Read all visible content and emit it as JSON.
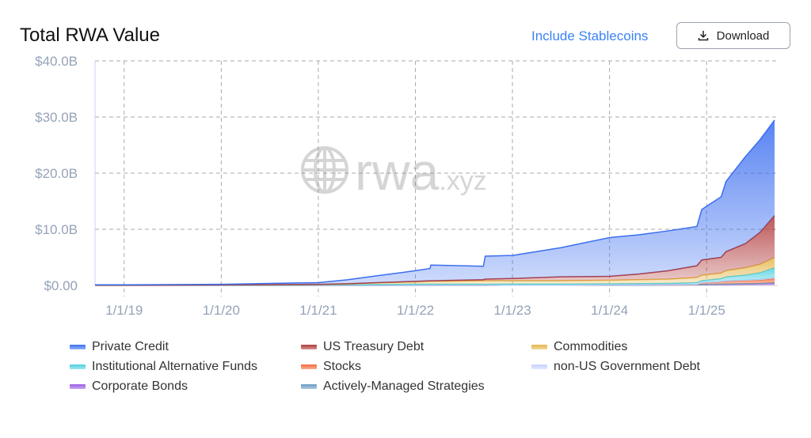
{
  "header": {
    "title": "Total RWA Value",
    "stablecoins_label": "Include Stablecoins",
    "download_label": "Download"
  },
  "watermark": "rwa.xyz",
  "chart_data": {
    "type": "area",
    "stacked": true,
    "title": "Total RWA Value",
    "ylim": [
      0,
      40
    ],
    "xlim": [
      2018.7,
      2025.7
    ],
    "y_ticks": [
      {
        "v": 0,
        "label": "$0.00"
      },
      {
        "v": 10,
        "label": "$10.0B"
      },
      {
        "v": 20,
        "label": "$20.0B"
      },
      {
        "v": 30,
        "label": "$30.0B"
      },
      {
        "v": 40,
        "label": "$40.0B"
      }
    ],
    "x_ticks": [
      {
        "v": 2019,
        "label": "1/1/19"
      },
      {
        "v": 2020,
        "label": "1/1/20"
      },
      {
        "v": 2021,
        "label": "1/1/21"
      },
      {
        "v": 2022,
        "label": "1/1/22"
      },
      {
        "v": 2023,
        "label": "1/1/23"
      },
      {
        "v": 2024,
        "label": "1/1/24"
      },
      {
        "v": 2025,
        "label": "1/1/25"
      }
    ],
    "grid": true,
    "legend_position": "bottom",
    "x": [
      2018.7,
      2019,
      2020,
      2021,
      2021.3,
      2021.6,
      2022,
      2022.15,
      2022.16,
      2022.7,
      2022.72,
      2023,
      2023.5,
      2024,
      2024.3,
      2024.6,
      2024.9,
      2024.95,
      2025.15,
      2025.2,
      2025.4,
      2025.55,
      2025.7
    ],
    "series": [
      {
        "name": "Corporate Bonds",
        "color": "#9b5de5",
        "values": [
          0,
          0,
          0,
          0,
          0,
          0,
          0.02,
          0.02,
          0.02,
          0.02,
          0.02,
          0.03,
          0.03,
          0.05,
          0.05,
          0.08,
          0.1,
          0.15,
          0.2,
          0.2,
          0.25,
          0.3,
          0.4
        ]
      },
      {
        "name": "Actively-Managed Strategies",
        "color": "#6b9ac4",
        "values": [
          0,
          0,
          0,
          0,
          0,
          0,
          0,
          0,
          0,
          0,
          0,
          0,
          0,
          0,
          0,
          0,
          0,
          0.03,
          0.03,
          0.04,
          0.05,
          0.05,
          0.05
        ]
      },
      {
        "name": "Stocks",
        "color": "#f26b3a",
        "values": [
          0,
          0,
          0,
          0,
          0,
          0,
          0,
          0,
          0,
          0,
          0,
          0,
          0,
          0.05,
          0.05,
          0.05,
          0.05,
          0.3,
          0.4,
          0.5,
          0.55,
          0.6,
          0.8
        ]
      },
      {
        "name": "non-US Government Debt",
        "color": "#c7d2fe",
        "values": [
          0,
          0,
          0,
          0,
          0,
          0,
          0,
          0,
          0,
          0,
          0,
          0,
          0,
          0.02,
          0.02,
          0.03,
          0.05,
          0.05,
          0.07,
          0.08,
          0.1,
          0.1,
          0.1
        ]
      },
      {
        "name": "Institutional Alternative Funds",
        "color": "#4dd0e1",
        "values": [
          0.02,
          0.02,
          0.05,
          0.08,
          0.1,
          0.15,
          0.2,
          0.2,
          0.2,
          0.2,
          0.2,
          0.2,
          0.2,
          0.15,
          0.2,
          0.2,
          0.3,
          0.3,
          0.5,
          0.7,
          0.9,
          1.2,
          1.8
        ]
      },
      {
        "name": "Commodities",
        "color": "#e5b64a",
        "values": [
          0.01,
          0.01,
          0.03,
          0.07,
          0.15,
          0.3,
          0.4,
          0.5,
          0.5,
          0.6,
          0.6,
          0.6,
          0.6,
          0.65,
          0.7,
          0.75,
          0.9,
          1.0,
          1.0,
          1.1,
          1.3,
          1.5,
          1.8
        ]
      },
      {
        "name": "US Treasury Debt",
        "color": "#b03a3a",
        "values": [
          0.02,
          0.02,
          0.02,
          0.05,
          0.05,
          0.05,
          0.1,
          0.1,
          0.1,
          0.2,
          0.3,
          0.4,
          0.7,
          0.7,
          1.0,
          1.5,
          2.1,
          2.7,
          2.8,
          3.4,
          4.3,
          5.7,
          7.5
        ]
      },
      {
        "name": "Private Credit",
        "color": "#3b6ef0",
        "values": [
          0.05,
          0.05,
          0.1,
          0.3,
          0.7,
          1.2,
          1.9,
          2.2,
          2.8,
          2.4,
          4.1,
          4.1,
          5.2,
          6.9,
          7.0,
          7.1,
          7.0,
          9.0,
          10.8,
          12.5,
          15.5,
          16.5,
          17.0
        ]
      }
    ]
  },
  "legend": [
    {
      "label": "Private Credit",
      "color": "#3b6ef0"
    },
    {
      "label": "US Treasury Debt",
      "color": "#b03a3a"
    },
    {
      "label": "Commodities",
      "color": "#e5b64a"
    },
    {
      "label": "Institutional Alternative Funds",
      "color": "#4dd0e1"
    },
    {
      "label": "Stocks",
      "color": "#f26b3a"
    },
    {
      "label": "non-US Government Debt",
      "color": "#c7d2fe"
    },
    {
      "label": "Corporate Bonds",
      "color": "#9b5de5"
    },
    {
      "label": "Actively-Managed Strategies",
      "color": "#6b9ac4"
    }
  ]
}
